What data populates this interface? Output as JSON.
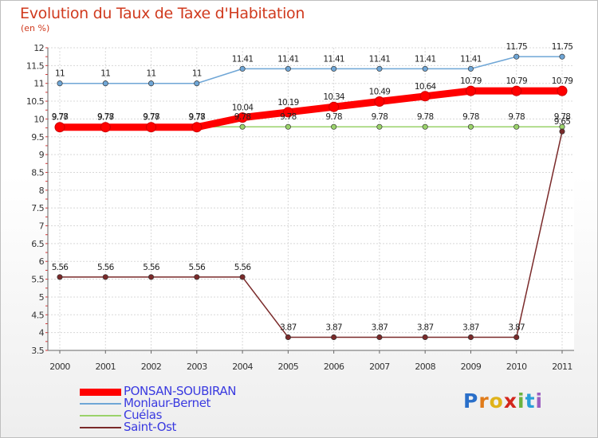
{
  "header": {
    "title": "Evolution du Taux de Taxe d'Habitation",
    "unit": "(en %)"
  },
  "logo": {
    "letters": [
      "P",
      "r",
      "o",
      "x",
      "i",
      "t",
      "i"
    ],
    "colors": [
      "#2a6fc9",
      "#e07b1a",
      "#e0b31a",
      "#d3261c",
      "#6cb33e",
      "#2a9fd8",
      "#9b5fc0"
    ]
  },
  "chart_data": {
    "type": "line",
    "title": "Evolution du Taux de Taxe d'Habitation",
    "ylabel": "(en %)",
    "xlabel": "",
    "x": [
      "2000",
      "2001",
      "2002",
      "2003",
      "2004",
      "2005",
      "2006",
      "2007",
      "2008",
      "2009",
      "2010",
      "2011"
    ],
    "ylim": [
      3.5,
      12
    ],
    "yticks": [
      "3.5",
      "4",
      "4.5",
      "5",
      "5.5",
      "6",
      "6.5",
      "7",
      "7.5",
      "8",
      "8.5",
      "9",
      "9.5",
      "10",
      "10.5",
      "11",
      "11.5",
      "12"
    ],
    "grid": true,
    "legend_position": "bottom-left",
    "series": [
      {
        "name": "PONSAN-SOUBIRAN",
        "color": "#ff0000",
        "emphasis": true,
        "values": [
          9.77,
          9.77,
          9.77,
          9.77,
          10.04,
          10.19,
          10.34,
          10.49,
          10.64,
          10.79,
          10.79,
          10.79
        ],
        "labels": [
          "9.77",
          "9.77",
          "9.77",
          "9.77",
          "10.04",
          "10.19",
          "10.34",
          "10.49",
          "10.64",
          "10.79",
          "10.79",
          "10.79"
        ]
      },
      {
        "name": "Monlaur-Bernet",
        "color": "#6fa6d6",
        "values": [
          11,
          11,
          11,
          11,
          11.41,
          11.41,
          11.41,
          11.41,
          11.41,
          11.41,
          11.75,
          11.75
        ],
        "labels": [
          "11",
          "11",
          "11",
          "11",
          "11.41",
          "11.41",
          "11.41",
          "11.41",
          "11.41",
          "11.41",
          "11.75",
          "11.75"
        ]
      },
      {
        "name": "Cuélas",
        "color": "#9ad26a",
        "values": [
          9.78,
          9.78,
          9.78,
          9.78,
          9.78,
          9.78,
          9.78,
          9.78,
          9.78,
          9.78,
          9.78,
          9.78
        ],
        "labels": [
          "9.78",
          "9.78",
          "9.78",
          "9.78",
          "9.78",
          "9.78",
          "9.78",
          "9.78",
          "9.78",
          "9.78",
          "9.78",
          "9.78"
        ]
      },
      {
        "name": "Saint-Ost",
        "color": "#7a2a2a",
        "values": [
          5.56,
          5.56,
          5.56,
          5.56,
          5.56,
          3.87,
          3.87,
          3.87,
          3.87,
          3.87,
          3.87,
          9.65
        ],
        "labels": [
          "5.56",
          "5.56",
          "5.56",
          "5.56",
          "5.56",
          "3.87",
          "3.87",
          "3.87",
          "3.87",
          "3.87",
          "3.87",
          "9.65"
        ]
      }
    ]
  }
}
